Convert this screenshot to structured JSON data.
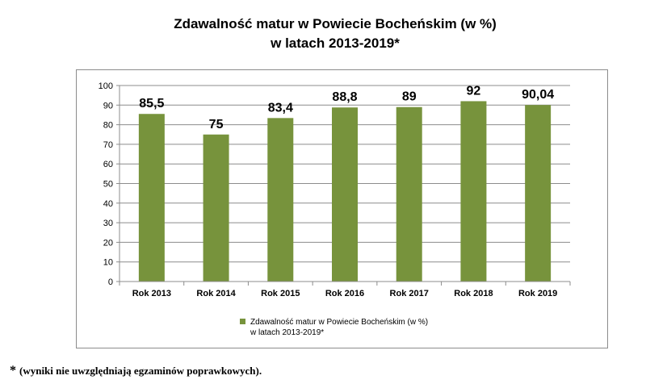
{
  "chart_data": {
    "type": "bar",
    "title_line1": "Zdawalność matur w Powiecie Bocheńskim (w %)",
    "title_line2": "w latach 2013-2019*",
    "categories": [
      "Rok 2013",
      "Rok 2014",
      "Rok 2015",
      "Rok 2016",
      "Rok 2017",
      "Rok 2018",
      "Rok 2019"
    ],
    "values": [
      85.5,
      75,
      83.4,
      88.8,
      89,
      92,
      90.04
    ],
    "data_labels": [
      "85,5",
      "75",
      "83,4",
      "88,8",
      "89",
      "92",
      "90,04"
    ],
    "ylim": [
      0,
      100
    ],
    "yticks": [
      0,
      10,
      20,
      30,
      40,
      50,
      60,
      70,
      80,
      90,
      100
    ],
    "grid": true,
    "bar_color": "#77933c",
    "legend": {
      "position": "bottom",
      "line1": "Zdawalność matur w Powiecie Bocheńskim (w %)",
      "line2": "w latach 2013-2019*"
    }
  },
  "footnote": {
    "star": "*",
    "text": "(wyniki nie uwzględniają egzaminów poprawkowych)."
  }
}
